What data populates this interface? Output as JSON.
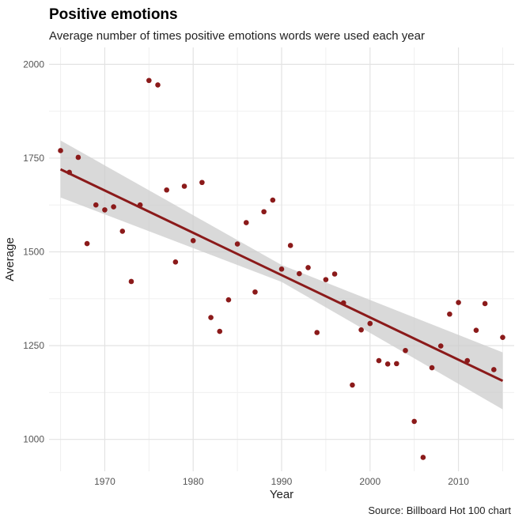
{
  "chart_data": {
    "type": "scatter",
    "title": "Positive emotions",
    "subtitle": "Average number of times positive emotions words were used each year",
    "xlabel": "Year",
    "ylabel": "Average",
    "caption": "Source: Billboard Hot 100 chart",
    "xlim": [
      1963.7,
      2016.3
    ],
    "ylim": [
      915,
      2045
    ],
    "xticks": [
      1970,
      1980,
      1990,
      2000,
      2010
    ],
    "yticks": [
      1000,
      1250,
      1500,
      1750,
      2000
    ],
    "grid": true,
    "legend": "none",
    "colors": {
      "points": "#8B1A1A",
      "trend": "#8B1A1A",
      "band": "#cccccc"
    },
    "points": {
      "x": [
        1965,
        1966,
        1967,
        1968,
        1969,
        1970,
        1971,
        1972,
        1973,
        1974,
        1975,
        1976,
        1977,
        1978,
        1979,
        1980,
        1981,
        1982,
        1983,
        1984,
        1985,
        1986,
        1987,
        1988,
        1989,
        1990,
        1991,
        1992,
        1993,
        1994,
        1995,
        1996,
        1997,
        1998,
        1999,
        2000,
        2001,
        2002,
        2003,
        2004,
        2005,
        2006,
        2007,
        2008,
        2009,
        2010,
        2011,
        2012,
        2013,
        2014,
        2015
      ],
      "y": [
        1770,
        1712,
        1752,
        1522,
        1625,
        1612,
        1620,
        1555,
        1421,
        1625,
        1957,
        1945,
        1665,
        1473,
        1675,
        1530,
        1685,
        1325,
        1288,
        1372,
        1521,
        1578,
        1393,
        1607,
        1638,
        1454,
        1517,
        1442,
        1458,
        1285,
        1426,
        1441,
        1364,
        1145,
        1292,
        1309,
        1210,
        1201,
        1202,
        1237,
        1048,
        952,
        1191,
        1249,
        1334,
        1365,
        1210,
        1291,
        1362,
        1186,
        1272
      ]
    },
    "trend": {
      "x": [
        1965,
        2015
      ],
      "y": [
        1720,
        1156
      ]
    },
    "confidence_band": {
      "x": [
        1965,
        1990,
        2015
      ],
      "lower": [
        1645,
        1420,
        1080
      ],
      "upper": [
        1797,
        1465,
        1232
      ]
    }
  }
}
